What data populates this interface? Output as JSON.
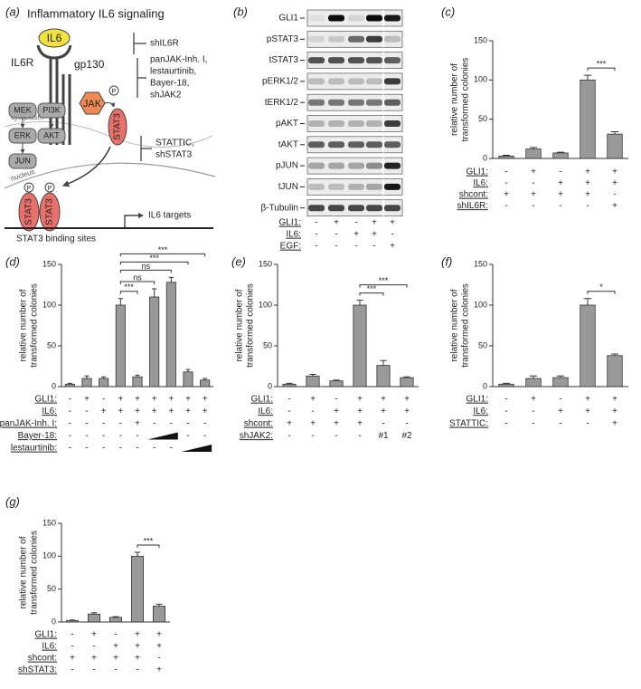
{
  "panel_labels": [
    "(a)",
    "(b)",
    "(c)",
    "(d)",
    "(e)",
    "(f)",
    "(g)"
  ],
  "diagram": {
    "title": "Inflammatory IL6 signaling",
    "ligand": "IL6",
    "receptor": "IL6R",
    "coreceptor": "gp130",
    "cytoplasm": "cytoplasm",
    "nucleus": "nucleus",
    "kinase": "JAK",
    "phospho": "P",
    "stat": "STAT3",
    "pathway": [
      "MEK",
      "PI3K",
      "ERK",
      "AKT",
      "JUN"
    ],
    "dimer": [
      "STAT3",
      "STAT3"
    ],
    "dimer_phospho": [
      "P",
      "P"
    ],
    "targets": "IL6 targets",
    "binding_sites": "STAT3 binding sites",
    "inhibitors": [
      [
        "shIL6R"
      ],
      [
        "panJAK-Inh. I,",
        "lestaurtinib,",
        "Bayer-18,",
        "shJAK2"
      ],
      [
        "STATTIC,",
        "shSTAT3"
      ]
    ]
  },
  "blot": {
    "proteins": [
      "GLI1",
      "pSTAT3",
      "tSTAT3",
      "pERK1/2",
      "tERK1/2",
      "pAKT",
      "tAKT",
      "pJUN",
      "tJUN",
      "β-Tubulin"
    ],
    "conditions": [
      {
        "label": "GLI1:",
        "values": [
          "-",
          "+",
          "-",
          "+",
          "+"
        ]
      },
      {
        "label": "IL6:",
        "values": [
          "-",
          "-",
          "+",
          "+",
          "-"
        ]
      },
      {
        "label": "EGF:",
        "values": [
          "-",
          "-",
          "-",
          "-",
          "+"
        ]
      }
    ]
  },
  "chart_data": [
    {
      "type": "bar",
      "ylabel": [
        "relative number of",
        "transformed colonies"
      ],
      "ylim": [
        0,
        150
      ],
      "yticks": [
        0,
        50,
        100,
        150
      ],
      "values": [
        3,
        12,
        7,
        100,
        31
      ],
      "errors": [
        1,
        2,
        1,
        6,
        3
      ],
      "color": "#999999",
      "conditions": [
        {
          "label": "GLI1:",
          "values": [
            "-",
            "+",
            "-",
            "+",
            "+"
          ]
        },
        {
          "label": "IL6:",
          "values": [
            "-",
            "-",
            "+",
            "+",
            "+"
          ]
        },
        {
          "label": "shcont:",
          "values": [
            "+",
            "+",
            "+",
            "+",
            "-"
          ]
        },
        {
          "label": "shIL6R:",
          "values": [
            "-",
            "-",
            "-",
            "-",
            "+"
          ]
        }
      ],
      "significance": [
        {
          "from": 3,
          "to": 4,
          "label": "***"
        }
      ]
    },
    {
      "type": "bar",
      "ylabel": [
        "relative number of",
        "transformed colonies"
      ],
      "ylim": [
        0,
        150
      ],
      "yticks": [
        0,
        50,
        100,
        150
      ],
      "values": [
        3,
        10,
        10,
        100,
        12,
        110,
        128,
        18,
        8
      ],
      "errors": [
        1,
        3,
        2,
        8,
        2,
        10,
        6,
        3,
        2
      ],
      "color": "#999999",
      "conditions": [
        {
          "label": "GLI1:",
          "values": [
            "-",
            "+",
            "-",
            "+",
            "+",
            "+",
            "+",
            "+",
            "+"
          ]
        },
        {
          "label": "IL6:",
          "values": [
            "-",
            "-",
            "+",
            "+",
            "+",
            "+",
            "+",
            "+",
            "+"
          ]
        },
        {
          "label": "panJAK-Inh. I:",
          "values": [
            "-",
            "-",
            "-",
            "-",
            "+",
            "-",
            "-",
            "-",
            "-"
          ]
        },
        {
          "label": "Bayer-18:",
          "values": [
            "-",
            "-",
            "-",
            "-",
            "-",
            null,
            null,
            "-",
            "-"
          ],
          "ramp": true
        },
        {
          "label": "lestaurtinib:",
          "values": [
            "-",
            "-",
            "-",
            "-",
            "-",
            "-",
            "-",
            null,
            null
          ],
          "ramp": true
        }
      ],
      "significance": [
        {
          "from": 3,
          "to": 4,
          "label": "***"
        },
        {
          "from": 3,
          "to": 5,
          "label": "ns"
        },
        {
          "from": 3,
          "to": 6,
          "label": "ns"
        },
        {
          "from": 3,
          "to": 7,
          "label": "***"
        },
        {
          "from": 3,
          "to": 8,
          "label": "***"
        }
      ]
    },
    {
      "type": "bar",
      "ylabel": [
        "relative number of",
        "transformed colonies"
      ],
      "ylim": [
        0,
        150
      ],
      "yticks": [
        0,
        50,
        100,
        150
      ],
      "values": [
        3,
        13,
        7,
        100,
        26,
        11
      ],
      "errors": [
        1,
        2,
        1,
        6,
        6,
        1
      ],
      "color": "#999999",
      "conditions": [
        {
          "label": "GLI1:",
          "values": [
            "-",
            "+",
            "-",
            "+",
            "+",
            "+"
          ]
        },
        {
          "label": "IL6:",
          "values": [
            "-",
            "-",
            "+",
            "+",
            "+",
            "+"
          ]
        },
        {
          "label": "shcont:",
          "values": [
            "+",
            "+",
            "+",
            "+",
            "-",
            "-"
          ]
        },
        {
          "label": "shJAK2:",
          "values": [
            "-",
            "-",
            "-",
            "-",
            "#1",
            "#2"
          ]
        }
      ],
      "significance": [
        {
          "from": 3,
          "to": 4,
          "label": "***"
        },
        {
          "from": 3,
          "to": 5,
          "label": "***"
        }
      ]
    },
    {
      "type": "bar",
      "ylabel": [
        "relative number of",
        "transformed colonies"
      ],
      "ylim": [
        0,
        150
      ],
      "yticks": [
        0,
        50,
        100,
        150
      ],
      "values": [
        3,
        10,
        11,
        100,
        38
      ],
      "errors": [
        1,
        3,
        2,
        8,
        2
      ],
      "color": "#999999",
      "conditions": [
        {
          "label": "GLI1:",
          "values": [
            "-",
            "+",
            "-",
            "+",
            "+"
          ]
        },
        {
          "label": "IL6:",
          "values": [
            "-",
            "-",
            "+",
            "+",
            "+"
          ]
        },
        {
          "label": "STATTIC:",
          "values": [
            "-",
            "-",
            "-",
            "-",
            "+"
          ]
        }
      ],
      "significance": [
        {
          "from": 3,
          "to": 4,
          "label": "*"
        }
      ]
    },
    {
      "type": "bar",
      "ylabel": [
        "relative number of",
        "transformed colonies"
      ],
      "ylim": [
        0,
        150
      ],
      "yticks": [
        0,
        50,
        100,
        150
      ],
      "values": [
        2,
        12,
        7,
        100,
        24
      ],
      "errors": [
        1,
        2,
        1,
        6,
        3
      ],
      "color": "#999999",
      "conditions": [
        {
          "label": "GLI1:",
          "values": [
            "-",
            "+",
            "-",
            "+",
            "+"
          ]
        },
        {
          "label": "IL6:",
          "values": [
            "-",
            "-",
            "+",
            "+",
            "+"
          ]
        },
        {
          "label": "shcont:",
          "values": [
            "+",
            "+",
            "+",
            "+",
            "-"
          ]
        },
        {
          "label": "shSTAT3:",
          "values": [
            "-",
            "-",
            "-",
            "-",
            "+"
          ]
        }
      ],
      "significance": [
        {
          "from": 3,
          "to": 4,
          "label": "***"
        }
      ]
    }
  ]
}
